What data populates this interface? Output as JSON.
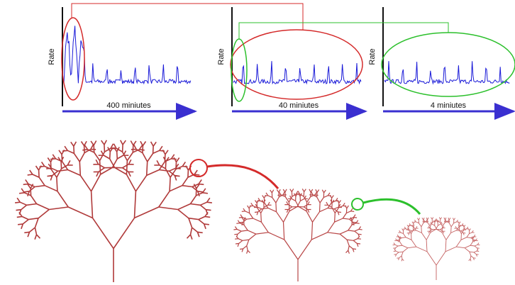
{
  "panels": [
    {
      "y_label": "Rate",
      "x_label": "400 miniutes"
    },
    {
      "y_label": "Rate",
      "x_label": "40 miniutes"
    },
    {
      "y_label": "Rate",
      "x_label": "4 miniutes"
    }
  ]
}
